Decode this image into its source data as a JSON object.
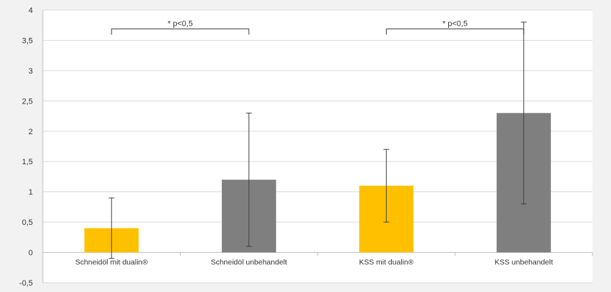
{
  "chart_data": {
    "type": "bar",
    "categories": [
      "Schneidöl mit dualin®",
      "Schneidöl unbehandelt",
      "KSS mit dualin®",
      "KSS unbehandelt"
    ],
    "values": [
      0.4,
      1.2,
      1.1,
      2.3
    ],
    "error_low": [
      -0.1,
      0.1,
      0.5,
      0.8
    ],
    "error_high": [
      0.9,
      2.3,
      1.7,
      3.8
    ],
    "bar_colors": [
      "#FFC000",
      "#7F7F7F",
      "#FFC000",
      "#7F7F7F"
    ],
    "ylim": [
      -0.5,
      4
    ],
    "yticks": [
      -0.5,
      0,
      0.5,
      1,
      1.5,
      2,
      2.5,
      3,
      3.5,
      4
    ],
    "ytick_labels": [
      "-0,5",
      "0",
      "0,5",
      "1",
      "1,5",
      "2",
      "2,5",
      "3",
      "3,5",
      "4"
    ],
    "grid": true,
    "annotations": [
      {
        "text": "* p<0,5",
        "from_category": 0,
        "to_category": 1,
        "level": 3.9
      },
      {
        "text": "* p<0,5",
        "from_category": 2,
        "to_category": 3,
        "level": 3.9
      }
    ],
    "colors": {
      "gridline": "#d9d9d9",
      "plot_background": "#ffffff",
      "page_background": "#f2f2f2"
    }
  }
}
